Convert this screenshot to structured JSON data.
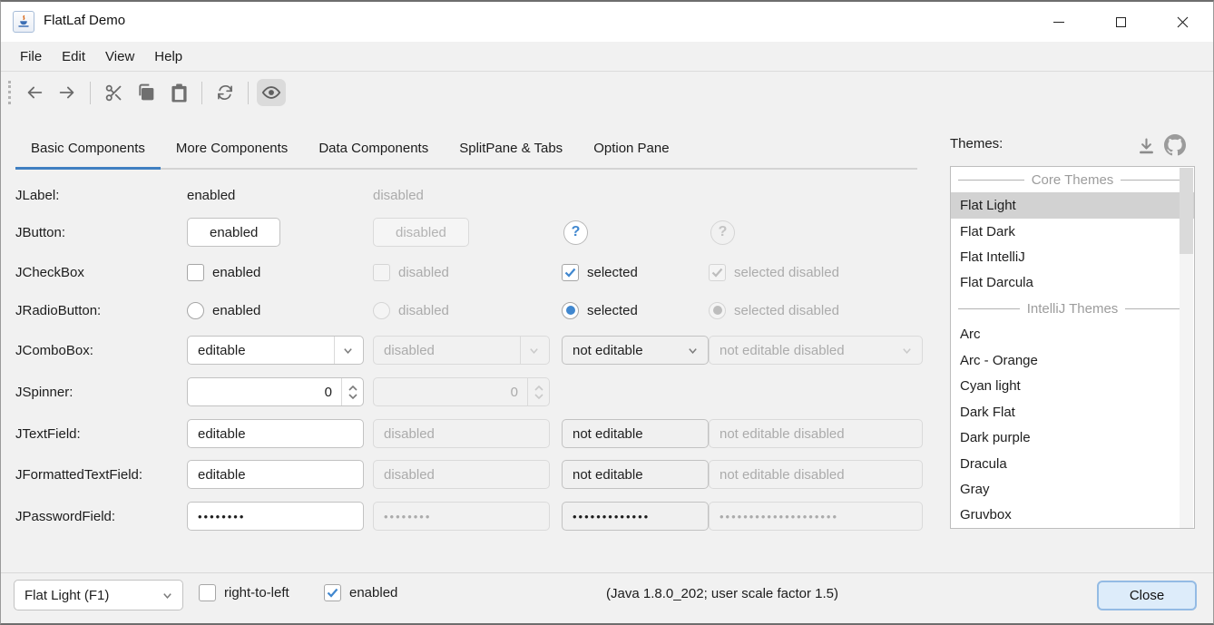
{
  "colors": {
    "accent_blue": "#3f7fc1",
    "check_blue": "#4087cf",
    "selection_gray": "#d2d2d2",
    "panel_bg": "#f1f1f1",
    "disabled_text": "#ababab",
    "close_button_bg": "#ddecfa",
    "close_button_border": "#94bbe4"
  },
  "titlebar": {
    "title": "FlatLaf Demo",
    "app_icon": "java-coffee-cup-icon",
    "controls": [
      "minimize-icon",
      "maximize-icon",
      "close-icon"
    ]
  },
  "menubar": {
    "items": [
      "File",
      "Edit",
      "View",
      "Help"
    ]
  },
  "toolbar": {
    "icons": [
      "back-arrow-icon",
      "forward-arrow-icon",
      "cut-icon",
      "copy-icon",
      "paste-icon",
      "refresh-icon",
      "eye-icon"
    ],
    "toggled": "eye-icon"
  },
  "tabs": {
    "items": [
      "Basic Components",
      "More Components",
      "Data Components",
      "SplitPane & Tabs",
      "Option Pane"
    ],
    "selected": "Basic Components"
  },
  "components": {
    "jlabel": {
      "name": "JLabel:",
      "enabled": "enabled",
      "disabled": "disabled"
    },
    "jbutton": {
      "name": "JButton:",
      "enabled": "enabled",
      "disabled": "disabled",
      "help": "?",
      "help_disabled": "?"
    },
    "jcheckbox": {
      "name": "JCheckBox",
      "enabled": "enabled",
      "disabled": "disabled",
      "selected": "selected",
      "selected_disabled": "selected disabled"
    },
    "jradiobutton": {
      "name": "JRadioButton:",
      "enabled": "enabled",
      "disabled": "disabled",
      "selected": "selected",
      "selected_disabled": "selected disabled"
    },
    "jcombobox": {
      "name": "JComboBox:",
      "editable": "editable",
      "disabled": "disabled",
      "not_editable": "not editable",
      "not_editable_disabled": "not editable disabled"
    },
    "jspinner": {
      "name": "JSpinner:",
      "value": "0",
      "disabled_value": "0"
    },
    "jtextfield": {
      "name": "JTextField:",
      "editable": "editable",
      "disabled": "disabled",
      "not_editable": "not editable",
      "not_editable_disabled": "not editable disabled"
    },
    "jformattedtextfield": {
      "name": "JFormattedTextField:",
      "editable": "editable",
      "disabled": "disabled",
      "not_editable": "not editable",
      "not_editable_disabled": "not editable disabled"
    },
    "jpasswordfield": {
      "name": "JPasswordField:",
      "c1": "••••••••",
      "c2": "••••••••",
      "c3": "•••••••••••••",
      "c4": "••••••••••••••••••••"
    }
  },
  "themes": {
    "label": "Themes:",
    "icons": [
      "download-icon",
      "github-icon"
    ],
    "selected": "Flat Light",
    "list": [
      {
        "type": "separator",
        "label": "Core Themes"
      },
      {
        "type": "item",
        "label": "Flat Light",
        "selected": true
      },
      {
        "type": "item",
        "label": "Flat Dark"
      },
      {
        "type": "item",
        "label": "Flat IntelliJ"
      },
      {
        "type": "item",
        "label": "Flat Darcula"
      },
      {
        "type": "separator",
        "label": "IntelliJ Themes"
      },
      {
        "type": "item",
        "label": "Arc"
      },
      {
        "type": "item",
        "label": "Arc - Orange"
      },
      {
        "type": "item",
        "label": "Cyan light"
      },
      {
        "type": "item",
        "label": "Dark Flat"
      },
      {
        "type": "item",
        "label": "Dark purple"
      },
      {
        "type": "item",
        "label": "Dracula"
      },
      {
        "type": "item",
        "label": "Gray"
      },
      {
        "type": "item",
        "label": "Gruvbox"
      }
    ]
  },
  "statusbar": {
    "theme_combo_value": "Flat Light (F1)",
    "rtl_label": "right-to-left",
    "rtl_checked": false,
    "enabled_label": "enabled",
    "enabled_checked": true,
    "info": "(Java 1.8.0_202;  user scale factor 1.5)",
    "close_label": "Close"
  }
}
